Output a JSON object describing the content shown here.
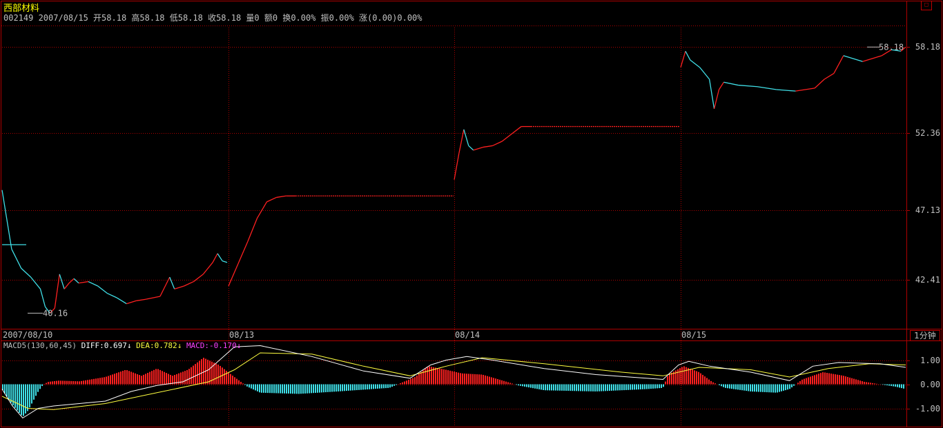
{
  "header": {
    "name": "西部材料",
    "quote": "002149 2007/08/15 开58.18 高58.18 低58.18 收58.18 量0 额0 换0.00% 振0.00% 涨(0.00)0.00%"
  },
  "colors": {
    "up": "#ff2020",
    "down": "#40e0e8",
    "grid": "#b00000",
    "diff": "#ffffff",
    "dea": "#ffff40",
    "macd_label": "#ff40ff"
  },
  "period_label": "1分钟",
  "corner_icon": "restore-icon",
  "chart_data": [
    {
      "type": "line",
      "name": "price",
      "y_ticks": [
        "58.18",
        "52.36",
        "47.13",
        "42.41"
      ],
      "ylim": [
        39.2,
        59.5
      ],
      "x_ticks": [
        "2007/08/10",
        "08/13",
        "08/14",
        "08/15"
      ],
      "annotations": {
        "last_price": "58.18",
        "low_price": "40.16"
      },
      "sessions": [
        {
          "date": "2007/08/10",
          "points": [
            [
              0,
              48.5
            ],
            [
              2,
              44.5
            ],
            [
              4,
              43.2
            ],
            [
              6,
              42.6
            ],
            [
              8,
              41.8
            ],
            [
              9,
              40.6
            ],
            [
              10,
              40.16
            ],
            [
              11,
              40.5
            ],
            [
              12,
              42.8
            ],
            [
              13,
              41.8
            ],
            [
              14,
              42.2
            ],
            [
              15,
              42.5
            ],
            [
              16,
              42.2
            ],
            [
              18,
              42.3
            ],
            [
              20,
              42.0
            ],
            [
              22,
              41.5
            ],
            [
              24,
              41.2
            ],
            [
              26,
              40.8
            ],
            [
              28,
              41.0
            ],
            [
              30,
              41.1
            ],
            [
              33,
              41.3
            ],
            [
              35,
              42.6
            ],
            [
              36,
              41.8
            ],
            [
              38,
              42.0
            ],
            [
              40,
              42.3
            ],
            [
              42,
              42.8
            ],
            [
              44,
              43.6
            ],
            [
              45,
              44.2
            ],
            [
              46,
              43.7
            ],
            [
              47,
              43.6
            ]
          ]
        },
        {
          "date": "08/13",
          "points": [
            [
              0,
              42.0
            ],
            [
              2,
              43.5
            ],
            [
              4,
              45.0
            ],
            [
              6,
              46.6
            ],
            [
              8,
              47.7
            ],
            [
              10,
              48.0
            ],
            [
              12,
              48.1
            ],
            [
              14,
              48.1
            ],
            [
              47,
              48.1
            ]
          ]
        },
        {
          "date": "08/14",
          "points": [
            [
              0,
              49.2
            ],
            [
              1,
              51.0
            ],
            [
              2,
              52.6
            ],
            [
              3,
              51.5
            ],
            [
              4,
              51.2
            ],
            [
              6,
              51.4
            ],
            [
              8,
              51.5
            ],
            [
              10,
              51.8
            ],
            [
              12,
              52.3
            ],
            [
              14,
              52.8
            ],
            [
              16,
              52.8
            ],
            [
              47,
              52.8
            ]
          ]
        },
        {
          "date": "08/15",
          "points": [
            [
              0,
              56.8
            ],
            [
              1,
              57.9
            ],
            [
              2,
              57.3
            ],
            [
              4,
              56.8
            ],
            [
              6,
              56.0
            ],
            [
              7,
              54.0
            ],
            [
              8,
              55.3
            ],
            [
              9,
              55.8
            ],
            [
              12,
              55.6
            ],
            [
              16,
              55.5
            ],
            [
              20,
              55.3
            ],
            [
              24,
              55.2
            ],
            [
              28,
              55.4
            ],
            [
              30,
              56.0
            ],
            [
              32,
              56.4
            ],
            [
              34,
              57.6
            ],
            [
              38,
              57.2
            ],
            [
              42,
              57.6
            ],
            [
              44,
              58.0
            ],
            [
              46,
              57.9
            ],
            [
              47,
              58.18
            ]
          ]
        }
      ]
    },
    {
      "type": "bar",
      "name": "MACD5",
      "legend": {
        "label": "MACD5(130,60,45)",
        "diff": "DIFF:0.697",
        "dea": "DEA:0.782",
        "macd": "MACD:-0.170"
      },
      "y_ticks": [
        "1.00",
        "0.00",
        "-1.00"
      ],
      "ylim": [
        -1.7,
        1.7
      ],
      "histogram": [
        [
          0,
          -0.2
        ],
        [
          3,
          -0.7
        ],
        [
          6,
          -1.1
        ],
        [
          8,
          -1.35
        ],
        [
          10,
          -1.1
        ],
        [
          12,
          -0.7
        ],
        [
          14,
          -0.3
        ],
        [
          16,
          0.0
        ],
        [
          18,
          0.1
        ],
        [
          22,
          0.15
        ],
        [
          30,
          0.12
        ],
        [
          40,
          0.3
        ],
        [
          48,
          0.6
        ],
        [
          54,
          0.35
        ],
        [
          60,
          0.65
        ],
        [
          66,
          0.35
        ],
        [
          72,
          0.6
        ],
        [
          78,
          1.1
        ],
        [
          84,
          0.8
        ],
        [
          90,
          0.3
        ],
        [
          95,
          -0.1
        ],
        [
          100,
          -0.35
        ],
        [
          115,
          -0.4
        ],
        [
          130,
          -0.3
        ],
        [
          150,
          -0.15
        ],
        [
          160,
          0.3
        ],
        [
          165,
          0.75
        ],
        [
          172,
          0.6
        ],
        [
          178,
          0.45
        ],
        [
          186,
          0.4
        ],
        [
          194,
          0.15
        ],
        [
          200,
          -0.05
        ],
        [
          210,
          -0.25
        ],
        [
          230,
          -0.3
        ],
        [
          250,
          -0.2
        ],
        [
          256,
          -0.15
        ],
        [
          258,
          0.4
        ],
        [
          264,
          0.75
        ],
        [
          270,
          0.5
        ],
        [
          275,
          0.1
        ],
        [
          280,
          -0.15
        ],
        [
          290,
          -0.3
        ],
        [
          300,
          -0.35
        ],
        [
          305,
          -0.2
        ],
        [
          310,
          0.2
        ],
        [
          318,
          0.5
        ],
        [
          326,
          0.35
        ],
        [
          334,
          0.1
        ],
        [
          340,
          0.0
        ],
        [
          346,
          -0.1
        ],
        [
          350,
          -0.2
        ]
      ],
      "diff": [
        [
          0,
          -0.2
        ],
        [
          4,
          -0.9
        ],
        [
          8,
          -1.4
        ],
        [
          14,
          -1.0
        ],
        [
          20,
          -0.9
        ],
        [
          30,
          -0.8
        ],
        [
          40,
          -0.7
        ],
        [
          50,
          -0.3
        ],
        [
          60,
          -0.05
        ],
        [
          70,
          0.1
        ],
        [
          80,
          0.6
        ],
        [
          90,
          1.55
        ],
        [
          100,
          1.6
        ],
        [
          120,
          1.15
        ],
        [
          140,
          0.55
        ],
        [
          158,
          0.25
        ],
        [
          166,
          0.8
        ],
        [
          172,
          1.0
        ],
        [
          180,
          1.15
        ],
        [
          190,
          1.0
        ],
        [
          210,
          0.65
        ],
        [
          230,
          0.4
        ],
        [
          256,
          0.2
        ],
        [
          262,
          0.8
        ],
        [
          266,
          0.95
        ],
        [
          274,
          0.75
        ],
        [
          290,
          0.5
        ],
        [
          305,
          0.15
        ],
        [
          314,
          0.75
        ],
        [
          324,
          0.9
        ],
        [
          340,
          0.85
        ],
        [
          350,
          0.7
        ]
      ],
      "dea": [
        [
          0,
          -0.5
        ],
        [
          10,
          -1.0
        ],
        [
          20,
          -1.05
        ],
        [
          40,
          -0.8
        ],
        [
          60,
          -0.35
        ],
        [
          80,
          0.1
        ],
        [
          90,
          0.6
        ],
        [
          100,
          1.3
        ],
        [
          120,
          1.25
        ],
        [
          140,
          0.75
        ],
        [
          158,
          0.35
        ],
        [
          172,
          0.75
        ],
        [
          186,
          1.1
        ],
        [
          210,
          0.85
        ],
        [
          240,
          0.5
        ],
        [
          256,
          0.35
        ],
        [
          270,
          0.7
        ],
        [
          290,
          0.6
        ],
        [
          305,
          0.3
        ],
        [
          320,
          0.65
        ],
        [
          336,
          0.85
        ],
        [
          350,
          0.8
        ]
      ]
    }
  ]
}
